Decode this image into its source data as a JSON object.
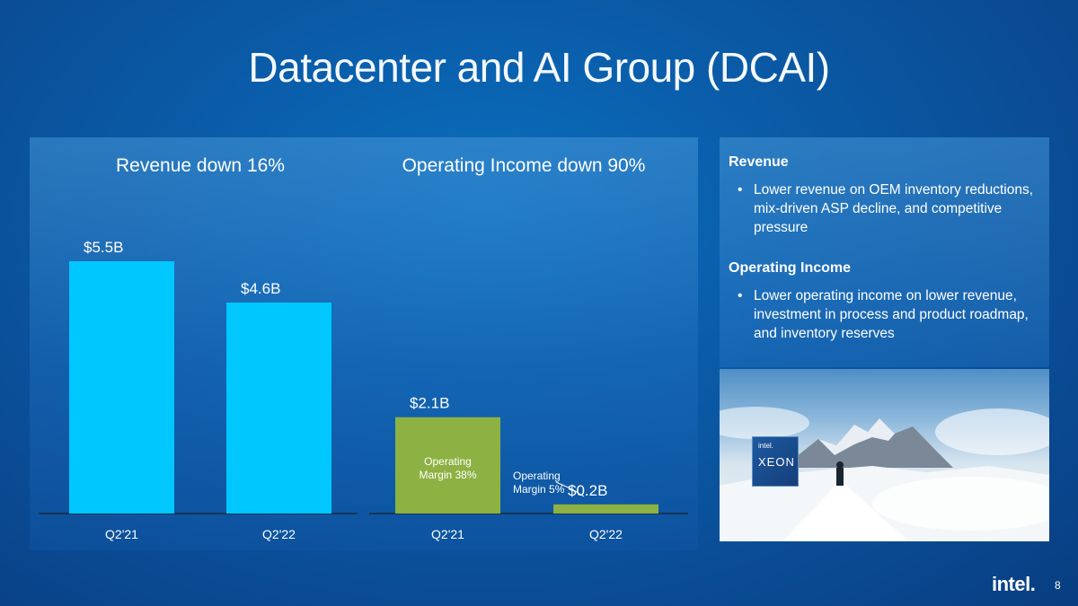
{
  "title": "Datacenter and AI Group (DCAI)",
  "chart_data": [
    {
      "type": "bar",
      "title": "Revenue down 16%",
      "categories": [
        "Q2'21",
        "Q2'22"
      ],
      "values": [
        5.5,
        4.6
      ],
      "data_labels": [
        "$5.5B",
        "$4.6B"
      ],
      "color": "#00c7fd"
    },
    {
      "type": "bar",
      "title": "Operating Income down 90%",
      "categories": [
        "Q2'21",
        "Q2'22"
      ],
      "values": [
        2.1,
        0.2
      ],
      "data_labels": [
        "$2.1B",
        "$0.2B"
      ],
      "annotations": [
        {
          "line1": "Operating",
          "line2": "Margin 38%"
        },
        {
          "line1": "Operating",
          "line2": "Margin 5%"
        }
      ],
      "color": "#8db143"
    }
  ],
  "commentary": {
    "revenue_title": "Revenue",
    "revenue_bullet": "Lower revenue on OEM inventory reductions, mix-driven ASP decline, and competitive pressure",
    "op_title": "Operating Income",
    "op_bullet": "Lower operating income on lower revenue, investment in process and product roadmap, and inventory reserves"
  },
  "photo": {
    "badge_brand": "intel.",
    "badge_product": "XEON"
  },
  "footer": {
    "logo": "intel.",
    "page_number": "8"
  }
}
